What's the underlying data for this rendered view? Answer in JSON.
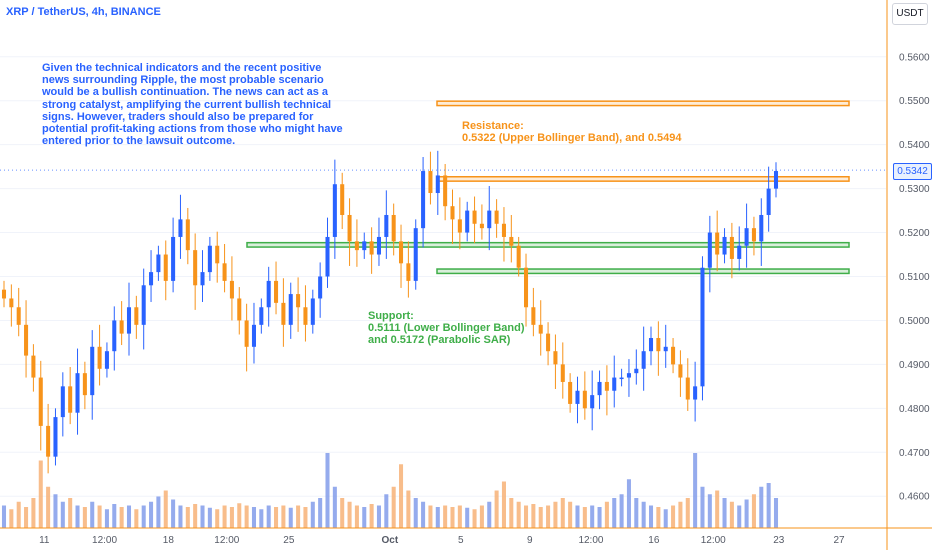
{
  "symbol": "XRP / TetherUS, 4h, BINANCE",
  "currency": "USDT",
  "current_price": "0.5342",
  "notes": {
    "analysis": "Given the technical indicators and the recent positive news surrounding Ripple, the most probable scenario would be a bullish continuation. The news can act as a strong catalyst, amplifying the current bullish technical signs. However, traders should also be prepared for potential profit-taking actions from those who might have entered prior to the lawsuit outcome.",
    "resistance_title": "Resistance:",
    "resistance_body": "0.5322 (Upper Bollinger Band), and 0.5494",
    "support_title": "Support:",
    "support_line1": "0.5111 (Lower Bollinger Band)",
    "support_line2": "and 0.5172 (Parabolic SAR)"
  },
  "colors": {
    "up": "#2962ff",
    "down": "#f7931a",
    "resistance": "#f7931a",
    "support": "#3fae49",
    "axis": "#f7931a",
    "volume_up": "#7a96e8",
    "volume_down": "#f6ad6e"
  },
  "chart_data": {
    "type": "candlestick",
    "ylim": [
      0.455,
      0.6
    ],
    "yticks": [
      "0.5600",
      "0.5500",
      "0.5400",
      "0.5300",
      "0.5200",
      "0.5100",
      "0.5000",
      "0.4900",
      "0.4800",
      "0.4700",
      "0.4600"
    ],
    "xticks": [
      {
        "label": "11",
        "pos": 0.05
      },
      {
        "label": "12:00",
        "pos": 0.118
      },
      {
        "label": "18",
        "pos": 0.19
      },
      {
        "label": "12:00",
        "pos": 0.256
      },
      {
        "label": "25",
        "pos": 0.326
      },
      {
        "label": "Oct",
        "pos": 0.44,
        "bold": true
      },
      {
        "label": "5",
        "pos": 0.52
      },
      {
        "label": "9",
        "pos": 0.598
      },
      {
        "label": "12:00",
        "pos": 0.667
      },
      {
        "label": "16",
        "pos": 0.738
      },
      {
        "label": "12:00",
        "pos": 0.805
      },
      {
        "label": "23",
        "pos": 0.879
      },
      {
        "label": "27",
        "pos": 0.947
      }
    ],
    "resistance_zones": [
      [
        0.5489,
        0.5499
      ],
      [
        0.5317,
        0.5327
      ]
    ],
    "support_zones": [
      [
        0.5167,
        0.5177
      ],
      [
        0.5107,
        0.5117
      ]
    ],
    "price_points": [
      0.505,
      0.503,
      0.499,
      0.492,
      0.487,
      0.476,
      0.469,
      0.478,
      0.485,
      0.479,
      0.488,
      0.483,
      0.494,
      0.489,
      0.493,
      0.5,
      0.497,
      0.503,
      0.499,
      0.508,
      0.511,
      0.515,
      0.509,
      0.519,
      0.523,
      0.516,
      0.508,
      0.511,
      0.517,
      0.513,
      0.509,
      0.505,
      0.5,
      0.494,
      0.499,
      0.503,
      0.509,
      0.504,
      0.499,
      0.506,
      0.503,
      0.499,
      0.505,
      0.51,
      0.519,
      0.531,
      0.524,
      0.518,
      0.516,
      0.518,
      0.515,
      0.519,
      0.524,
      0.518,
      0.513,
      0.509,
      0.521,
      0.534,
      0.529,
      0.533,
      0.526,
      0.523,
      0.52,
      0.525,
      0.522,
      0.521,
      0.525,
      0.522,
      0.519,
      0.517,
      0.512,
      0.503,
      0.499,
      0.497,
      0.493,
      0.49,
      0.486,
      0.481,
      0.484,
      0.48,
      0.483,
      0.486,
      0.484,
      0.487,
      0.487,
      0.488,
      0.489,
      0.493,
      0.496,
      0.493,
      0.494,
      0.49,
      0.487,
      0.482,
      0.485,
      0.512,
      0.52,
      0.515,
      0.519,
      0.514,
      0.517,
      0.521,
      0.518,
      0.524,
      0.53,
      0.534
    ],
    "volume_points": [
      0.3,
      0.25,
      0.35,
      0.28,
      0.4,
      0.9,
      0.55,
      0.45,
      0.35,
      0.4,
      0.3,
      0.28,
      0.35,
      0.3,
      0.25,
      0.32,
      0.28,
      0.3,
      0.25,
      0.3,
      0.35,
      0.42,
      0.5,
      0.38,
      0.3,
      0.28,
      0.32,
      0.3,
      0.27,
      0.25,
      0.3,
      0.28,
      0.33,
      0.3,
      0.28,
      0.25,
      0.3,
      0.28,
      0.3,
      0.27,
      0.3,
      0.28,
      0.35,
      0.4,
      1.0,
      0.55,
      0.4,
      0.35,
      0.3,
      0.28,
      0.32,
      0.3,
      0.45,
      0.55,
      0.85,
      0.5,
      0.4,
      0.35,
      0.3,
      0.28,
      0.3,
      0.28,
      0.3,
      0.27,
      0.25,
      0.3,
      0.35,
      0.5,
      0.62,
      0.4,
      0.35,
      0.3,
      0.32,
      0.28,
      0.3,
      0.35,
      0.4,
      0.35,
      0.3,
      0.28,
      0.3,
      0.28,
      0.35,
      0.4,
      0.45,
      0.65,
      0.4,
      0.35,
      0.3,
      0.28,
      0.25,
      0.3,
      0.35,
      0.4,
      1.0,
      0.55,
      0.45,
      0.5,
      0.4,
      0.35,
      0.3,
      0.38,
      0.45,
      0.55,
      0.6,
      0.4
    ]
  }
}
